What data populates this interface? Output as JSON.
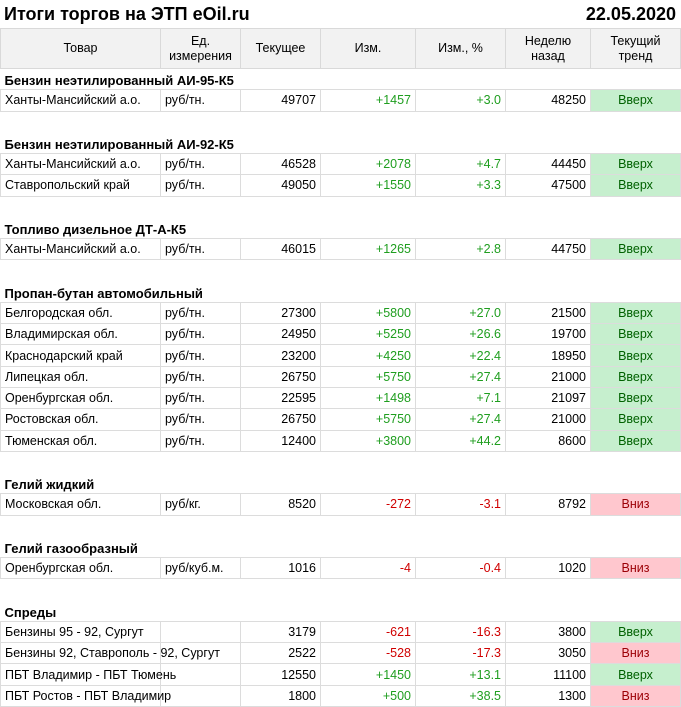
{
  "header": {
    "title": "Итоги торгов на ЭТП eOil.ru",
    "date": "22.05.2020"
  },
  "table": {
    "columns": [
      "Товар",
      "Ед. измерения",
      "Текущее",
      "Изм.",
      "Изм., %",
      "Неделю назад",
      "Текущий тренд"
    ],
    "sections": [
      {
        "title": "Бензин неэтилированный АИ-95-К5",
        "rows": [
          [
            "Ханты-Мансийский а.о.",
            "руб/тн.",
            "49707",
            "+1457",
            "+3.0",
            "48250",
            "Вверх"
          ]
        ]
      },
      {
        "title": "Бензин неэтилированный АИ-92-К5",
        "rows": [
          [
            "Ханты-Мансийский а.о.",
            "руб/тн.",
            "46528",
            "+2078",
            "+4.7",
            "44450",
            "Вверх"
          ],
          [
            "Ставропольский край",
            "руб/тн.",
            "49050",
            "+1550",
            "+3.3",
            "47500",
            "Вверх"
          ]
        ]
      },
      {
        "title": "Топливо дизельное ДТ-А-К5",
        "rows": [
          [
            "Ханты-Мансийский а.о.",
            "руб/тн.",
            "46015",
            "+1265",
            "+2.8",
            "44750",
            "Вверх"
          ]
        ]
      },
      {
        "title": "Пропан-бутан автомобильный",
        "rows": [
          [
            "Белгородская обл.",
            "руб/тн.",
            "27300",
            "+5800",
            "+27.0",
            "21500",
            "Вверх"
          ],
          [
            "Владимирская обл.",
            "руб/тн.",
            "24950",
            "+5250",
            "+26.6",
            "19700",
            "Вверх"
          ],
          [
            "Краснодарский край",
            "руб/тн.",
            "23200",
            "+4250",
            "+22.4",
            "18950",
            "Вверх"
          ],
          [
            "Липецкая обл.",
            "руб/тн.",
            "26750",
            "+5750",
            "+27.4",
            "21000",
            "Вверх"
          ],
          [
            "Оренбургская обл.",
            "руб/тн.",
            "22595",
            "+1498",
            "+7.1",
            "21097",
            "Вверх"
          ],
          [
            "Ростовская обл.",
            "руб/тн.",
            "26750",
            "+5750",
            "+27.4",
            "21000",
            "Вверх"
          ],
          [
            "Тюменская обл.",
            "руб/тн.",
            "12400",
            "+3800",
            "+44.2",
            "8600",
            "Вверх"
          ]
        ]
      },
      {
        "title": "Гелий жидкий",
        "rows": [
          [
            "Московская обл.",
            "руб/кг.",
            "8520",
            "-272",
            "-3.1",
            "8792",
            "Вниз"
          ]
        ]
      },
      {
        "title": "Гелий газообразный",
        "rows": [
          [
            "Оренбургская обл.",
            "руб/куб.м.",
            "1016",
            "-4",
            "-0.4",
            "1020",
            "Вниз"
          ]
        ]
      },
      {
        "title": "Спреды",
        "rows": [
          [
            "Бензины 95 - 92, Сургут",
            "",
            "3179",
            "-621",
            "-16.3",
            "3800",
            "Вверх"
          ],
          [
            "Бензины 92, Ставрополь - 92, Сургут",
            "",
            "2522",
            "-528",
            "-17.3",
            "3050",
            "Вниз"
          ],
          [
            "ПБТ Владимир - ПБТ Тюмень",
            "",
            "12550",
            "+1450",
            "+13.1",
            "11100",
            "Вверх"
          ],
          [
            "ПБТ Ростов - ПБТ Владимир",
            "",
            "1800",
            "+500",
            "+38.5",
            "1300",
            "Вниз"
          ]
        ]
      }
    ]
  }
}
